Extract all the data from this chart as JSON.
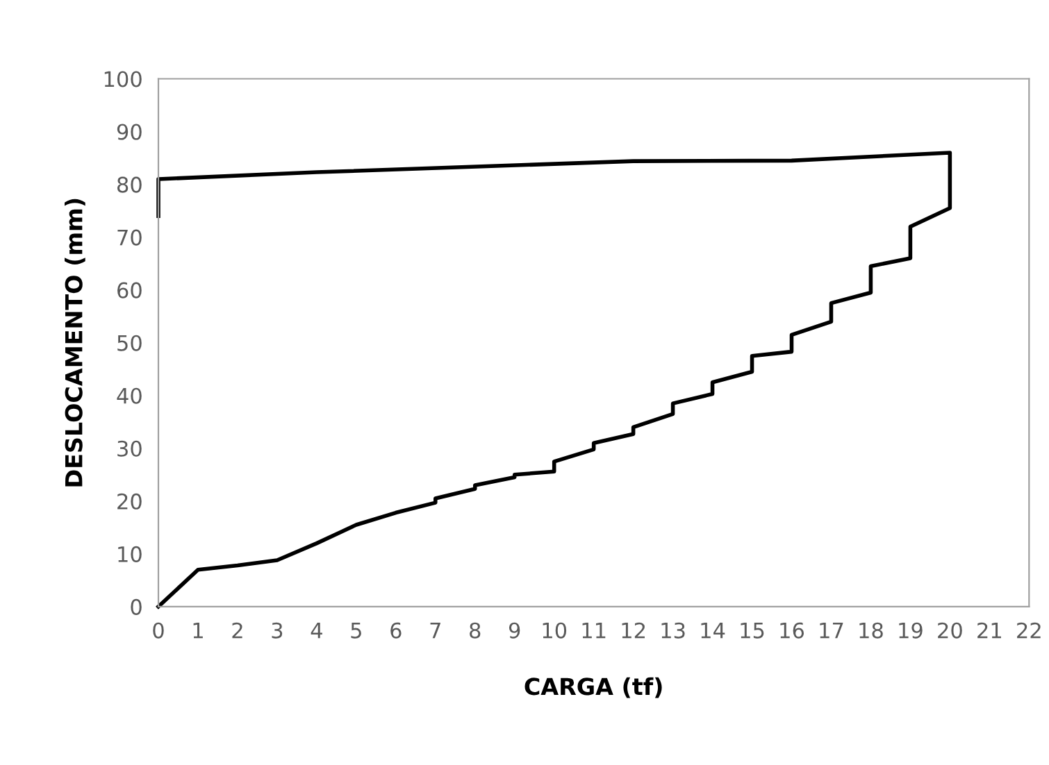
{
  "chart_data": {
    "type": "line",
    "xlabel": "CARGA (tf)",
    "ylabel": "DESLOCAMENTO (mm)",
    "series": [
      {
        "color": "#000000",
        "x": [
          0,
          1,
          2,
          3,
          4,
          5,
          6,
          7,
          7,
          8,
          8,
          9,
          9,
          10,
          10,
          11,
          11,
          12,
          12,
          13,
          13,
          14,
          14,
          15,
          15,
          16,
          16,
          17,
          17,
          18,
          18,
          19,
          19,
          20,
          20,
          16,
          12,
          4,
          0,
          0
        ],
        "values": [
          0,
          7,
          7.8,
          8.8,
          12,
          15.5,
          17.8,
          19.7,
          20.5,
          22.3,
          23,
          24.5,
          25,
          25.6,
          27.5,
          29.8,
          31,
          32.7,
          34,
          36.5,
          38.5,
          40.3,
          42.5,
          44.5,
          47.5,
          48.3,
          51.5,
          54,
          57.5,
          59.5,
          64.5,
          66,
          72,
          75.5,
          86,
          84.5,
          84.4,
          82.3,
          81,
          74
        ]
      }
    ],
    "xlim": [
      0,
      22
    ],
    "xticks": [
      0,
      1,
      2,
      3,
      4,
      5,
      6,
      7,
      8,
      9,
      10,
      11,
      12,
      13,
      14,
      15,
      16,
      17,
      18,
      19,
      20,
      21,
      22
    ],
    "ylim": [
      0,
      100
    ],
    "yticks": [
      0,
      10,
      20,
      30,
      40,
      50,
      60,
      70,
      80,
      90,
      100
    ],
    "grid": false,
    "legend": false,
    "marker": "none",
    "line_style": "solid"
  }
}
